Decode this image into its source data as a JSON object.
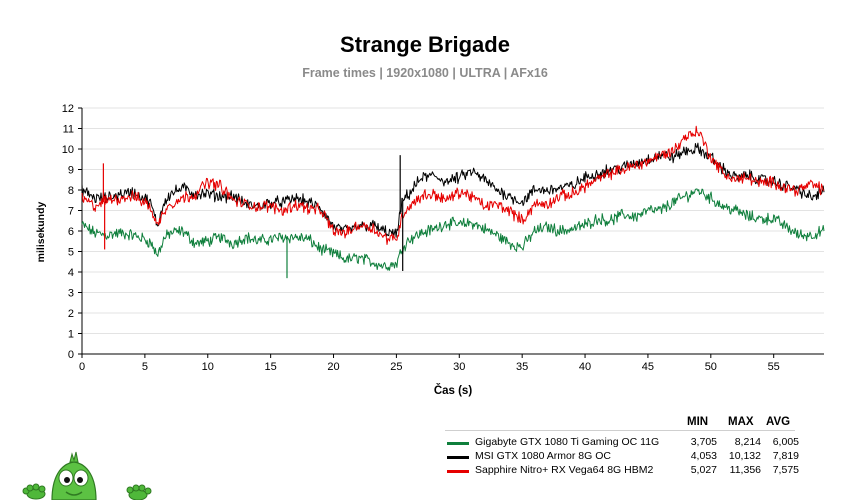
{
  "chart_data": {
    "type": "line",
    "title": "Strange Brigade",
    "subtitle": "Frame times | 1920x1080 | ULTRA | AFx16",
    "xlabel": "Čas (s)",
    "ylabel": "milisekundy",
    "xlim": [
      0,
      59
    ],
    "ylim": [
      0,
      12
    ],
    "xticks": [
      0,
      5,
      10,
      15,
      20,
      25,
      30,
      35,
      40,
      45,
      50,
      55
    ],
    "yticks": [
      0,
      1,
      2,
      3,
      4,
      5,
      6,
      7,
      8,
      9,
      10,
      11,
      12
    ],
    "grid": true,
    "legend_position": "bottom-right",
    "series": [
      {
        "name": "Gigabyte GTX 1080 Ti Gaming OC 11G",
        "color": "#0f7f3c",
        "min": "3,705",
        "max": "8,214",
        "avg": "6,005",
        "x": [
          0,
          1,
          2,
          3,
          4,
          5,
          5.5,
          6,
          6.5,
          7,
          8,
          9,
          10,
          11,
          12,
          13,
          14,
          15,
          16,
          17,
          18,
          19,
          20,
          21,
          22,
          23,
          24,
          25,
          25.5,
          26,
          27,
          28,
          29,
          30,
          31,
          32,
          33,
          34,
          35,
          36,
          37,
          38,
          39,
          40,
          41,
          42,
          43,
          44,
          45,
          46,
          47,
          48,
          49,
          50,
          51,
          52,
          53,
          54,
          55,
          56,
          57,
          58,
          59
        ],
        "y": [
          6.3,
          5.9,
          5.8,
          5.9,
          5.8,
          5.6,
          5.4,
          4.8,
          5.6,
          5.9,
          6.0,
          5.4,
          5.5,
          5.7,
          5.4,
          5.7,
          5.5,
          5.6,
          5.7,
          5.7,
          5.6,
          5.1,
          4.9,
          4.6,
          4.7,
          4.5,
          4.3,
          4.4,
          5.2,
          5.6,
          5.9,
          6.1,
          6.4,
          6.3,
          6.4,
          6.1,
          5.8,
          5.4,
          5.2,
          6.0,
          6.2,
          6.0,
          6.1,
          6.3,
          6.6,
          6.5,
          6.8,
          6.7,
          7.0,
          7.0,
          7.4,
          7.7,
          8.0,
          7.6,
          7.2,
          7.0,
          6.7,
          6.6,
          6.6,
          6.2,
          5.8,
          5.8,
          6.0
        ]
      },
      {
        "name": "MSI GTX 1080 Armor 8G OC",
        "color": "#000000",
        "min": "4,053",
        "max": "10,132",
        "avg": "7,819",
        "x": [
          0,
          1,
          2,
          3,
          4,
          5,
          5.5,
          6,
          6.5,
          7,
          8,
          9,
          10,
          11,
          12,
          13,
          14,
          15,
          16,
          17,
          18,
          19,
          20,
          21,
          22,
          23,
          24,
          25,
          25.5,
          26,
          27,
          28,
          29,
          30,
          31,
          32,
          33,
          34,
          35,
          36,
          37,
          38,
          39,
          40,
          41,
          42,
          43,
          44,
          45,
          46,
          47,
          48,
          49,
          50,
          51,
          52,
          53,
          54,
          55,
          56,
          57,
          58,
          59
        ],
        "y": [
          8.0,
          7.6,
          7.6,
          7.8,
          7.9,
          7.6,
          7.3,
          6.2,
          7.4,
          7.8,
          8.1,
          7.8,
          7.8,
          7.7,
          7.7,
          7.3,
          7.2,
          7.4,
          7.4,
          7.6,
          7.4,
          7.1,
          6.2,
          6.0,
          6.2,
          6.3,
          6.0,
          5.8,
          7.5,
          7.8,
          8.6,
          8.7,
          8.4,
          8.6,
          8.9,
          8.5,
          8.0,
          7.7,
          7.4,
          8.0,
          8.0,
          8.1,
          8.2,
          8.6,
          8.8,
          9.0,
          9.1,
          9.3,
          9.5,
          9.7,
          9.6,
          9.9,
          10.0,
          9.6,
          9.0,
          8.6,
          8.7,
          8.5,
          8.4,
          8.2,
          8.0,
          7.6,
          8.0
        ]
      },
      {
        "name": "Sapphire Nitro+ RX Vega64 8G HBM2",
        "color": "#e60000",
        "min": "5,027",
        "max": "11,356",
        "avg": "7,575",
        "x": [
          0,
          1,
          2,
          3,
          4,
          5,
          5.5,
          6,
          6.5,
          7,
          8,
          9,
          10,
          11,
          12,
          13,
          14,
          15,
          16,
          17,
          18,
          19,
          20,
          21,
          22,
          23,
          24,
          25,
          25.5,
          26,
          27,
          28,
          29,
          30,
          31,
          32,
          33,
          34,
          35,
          36,
          37,
          38,
          39,
          40,
          41,
          42,
          43,
          44,
          45,
          46,
          47,
          48,
          49,
          50,
          51,
          52,
          53,
          54,
          55,
          56,
          57,
          58,
          59
        ],
        "y": [
          7.6,
          7.2,
          7.5,
          7.6,
          7.7,
          7.4,
          7.1,
          6.2,
          7.0,
          7.3,
          7.6,
          7.8,
          8.4,
          8.2,
          7.5,
          7.3,
          7.2,
          7.2,
          7.0,
          7.3,
          7.1,
          7.0,
          6.0,
          5.9,
          6.3,
          6.2,
          5.7,
          5.6,
          6.8,
          7.2,
          7.7,
          7.8,
          7.5,
          7.9,
          7.7,
          7.2,
          7.3,
          7.0,
          6.5,
          7.3,
          7.3,
          7.7,
          7.8,
          8.2,
          8.5,
          8.8,
          9.0,
          9.2,
          9.4,
          9.7,
          9.9,
          10.6,
          10.9,
          9.6,
          8.8,
          8.5,
          8.6,
          8.3,
          8.4,
          8.1,
          8.0,
          8.3,
          8.0
        ]
      }
    ],
    "spikes": [
      {
        "series": 0,
        "x": 16.3,
        "y": 3.7
      },
      {
        "series": 1,
        "x": 25.3,
        "y": 9.7
      },
      {
        "series": 1,
        "x": 25.5,
        "y": 4.05
      },
      {
        "series": 2,
        "x": 1.7,
        "y": 9.3
      },
      {
        "series": 2,
        "x": 1.8,
        "y": 5.1
      }
    ]
  },
  "legend": {
    "headers": {
      "min": "MIN",
      "max": "MAX",
      "avg": "AVG"
    }
  }
}
